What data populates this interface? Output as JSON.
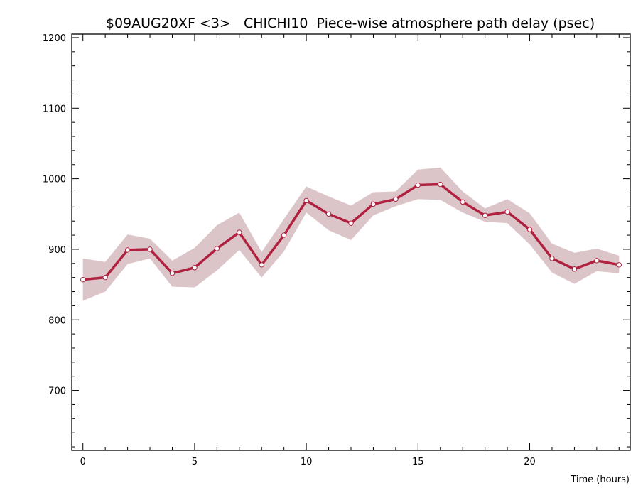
{
  "chart_data": {
    "type": "line",
    "title": "$09AUG20XF <3>   CHICHI10  Piece-wise atmosphere path delay (psec)",
    "xlabel": "Time (hours)",
    "ylabel": "",
    "xlim": [
      -0.5,
      24.5
    ],
    "ylim": [
      615,
      1205
    ],
    "x_ticks": [
      0,
      5,
      10,
      15,
      20
    ],
    "y_ticks": [
      700,
      800,
      900,
      1000,
      1100,
      1200
    ],
    "grid": false,
    "series": [
      {
        "x": [
          0,
          1,
          2,
          3,
          4,
          5,
          6,
          7,
          8,
          9,
          10,
          11,
          12,
          13,
          14,
          15,
          16,
          17,
          18,
          19,
          20,
          21,
          22,
          23,
          24
        ],
        "values": [
          857,
          860,
          899,
          900,
          866,
          874,
          901,
          924,
          878,
          920,
          969,
          950,
          937,
          964,
          971,
          991,
          992,
          967,
          948,
          953,
          928,
          887,
          872,
          884,
          878
        ],
        "band_upper": [
          887,
          882,
          921,
          915,
          884,
          902,
          934,
          952,
          896,
          943,
          989,
          975,
          962,
          981,
          982,
          1013,
          1016,
          982,
          958,
          971,
          951,
          908,
          895,
          901,
          891
        ],
        "band_lower": [
          827,
          840,
          879,
          887,
          847,
          846,
          870,
          899,
          860,
          897,
          952,
          927,
          913,
          948,
          961,
          971,
          970,
          952,
          939,
          937,
          907,
          867,
          851,
          869,
          866
        ]
      }
    ],
    "colors": {
      "line": "#b0203f",
      "band": "#dcc5c9",
      "marker_fill": "#ffffff",
      "axis": "#000000"
    }
  }
}
